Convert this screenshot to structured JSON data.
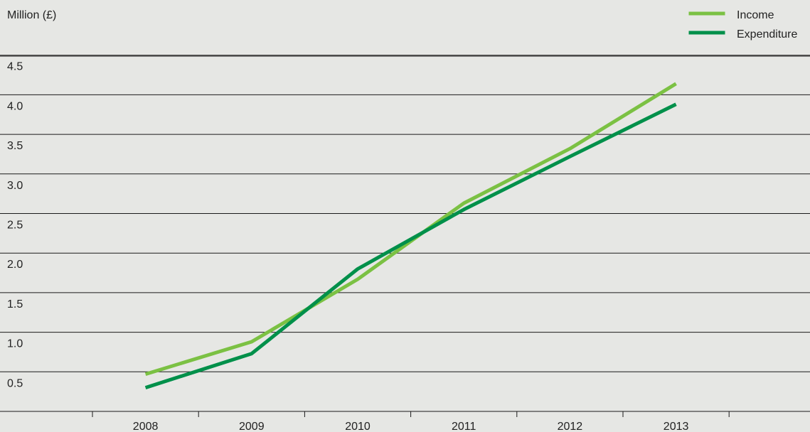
{
  "chart_data": {
    "type": "line",
    "ylabel": "Million (£)",
    "xlabel": "",
    "categories": [
      "2008",
      "2009",
      "2010",
      "2011",
      "2012",
      "2013"
    ],
    "ylim": [
      0,
      5
    ],
    "yticks": [
      "0.5",
      "1.0",
      "1.5",
      "2.0",
      "2.5",
      "3.0",
      "3.5",
      "4.0",
      "4.5"
    ],
    "yticks_values": [
      0.5,
      1.0,
      1.5,
      2.0,
      2.5,
      3.0,
      3.5,
      4.0,
      4.5
    ],
    "grid": true,
    "legend_position": "top-right",
    "series": [
      {
        "name": "Income",
        "color": "#7bc143",
        "values": [
          0.47,
          0.88,
          1.67,
          2.63,
          3.32,
          4.14
        ]
      },
      {
        "name": "Expenditure",
        "color": "#00904a",
        "values": [
          0.3,
          0.73,
          1.8,
          2.55,
          3.22,
          3.88
        ]
      }
    ]
  }
}
